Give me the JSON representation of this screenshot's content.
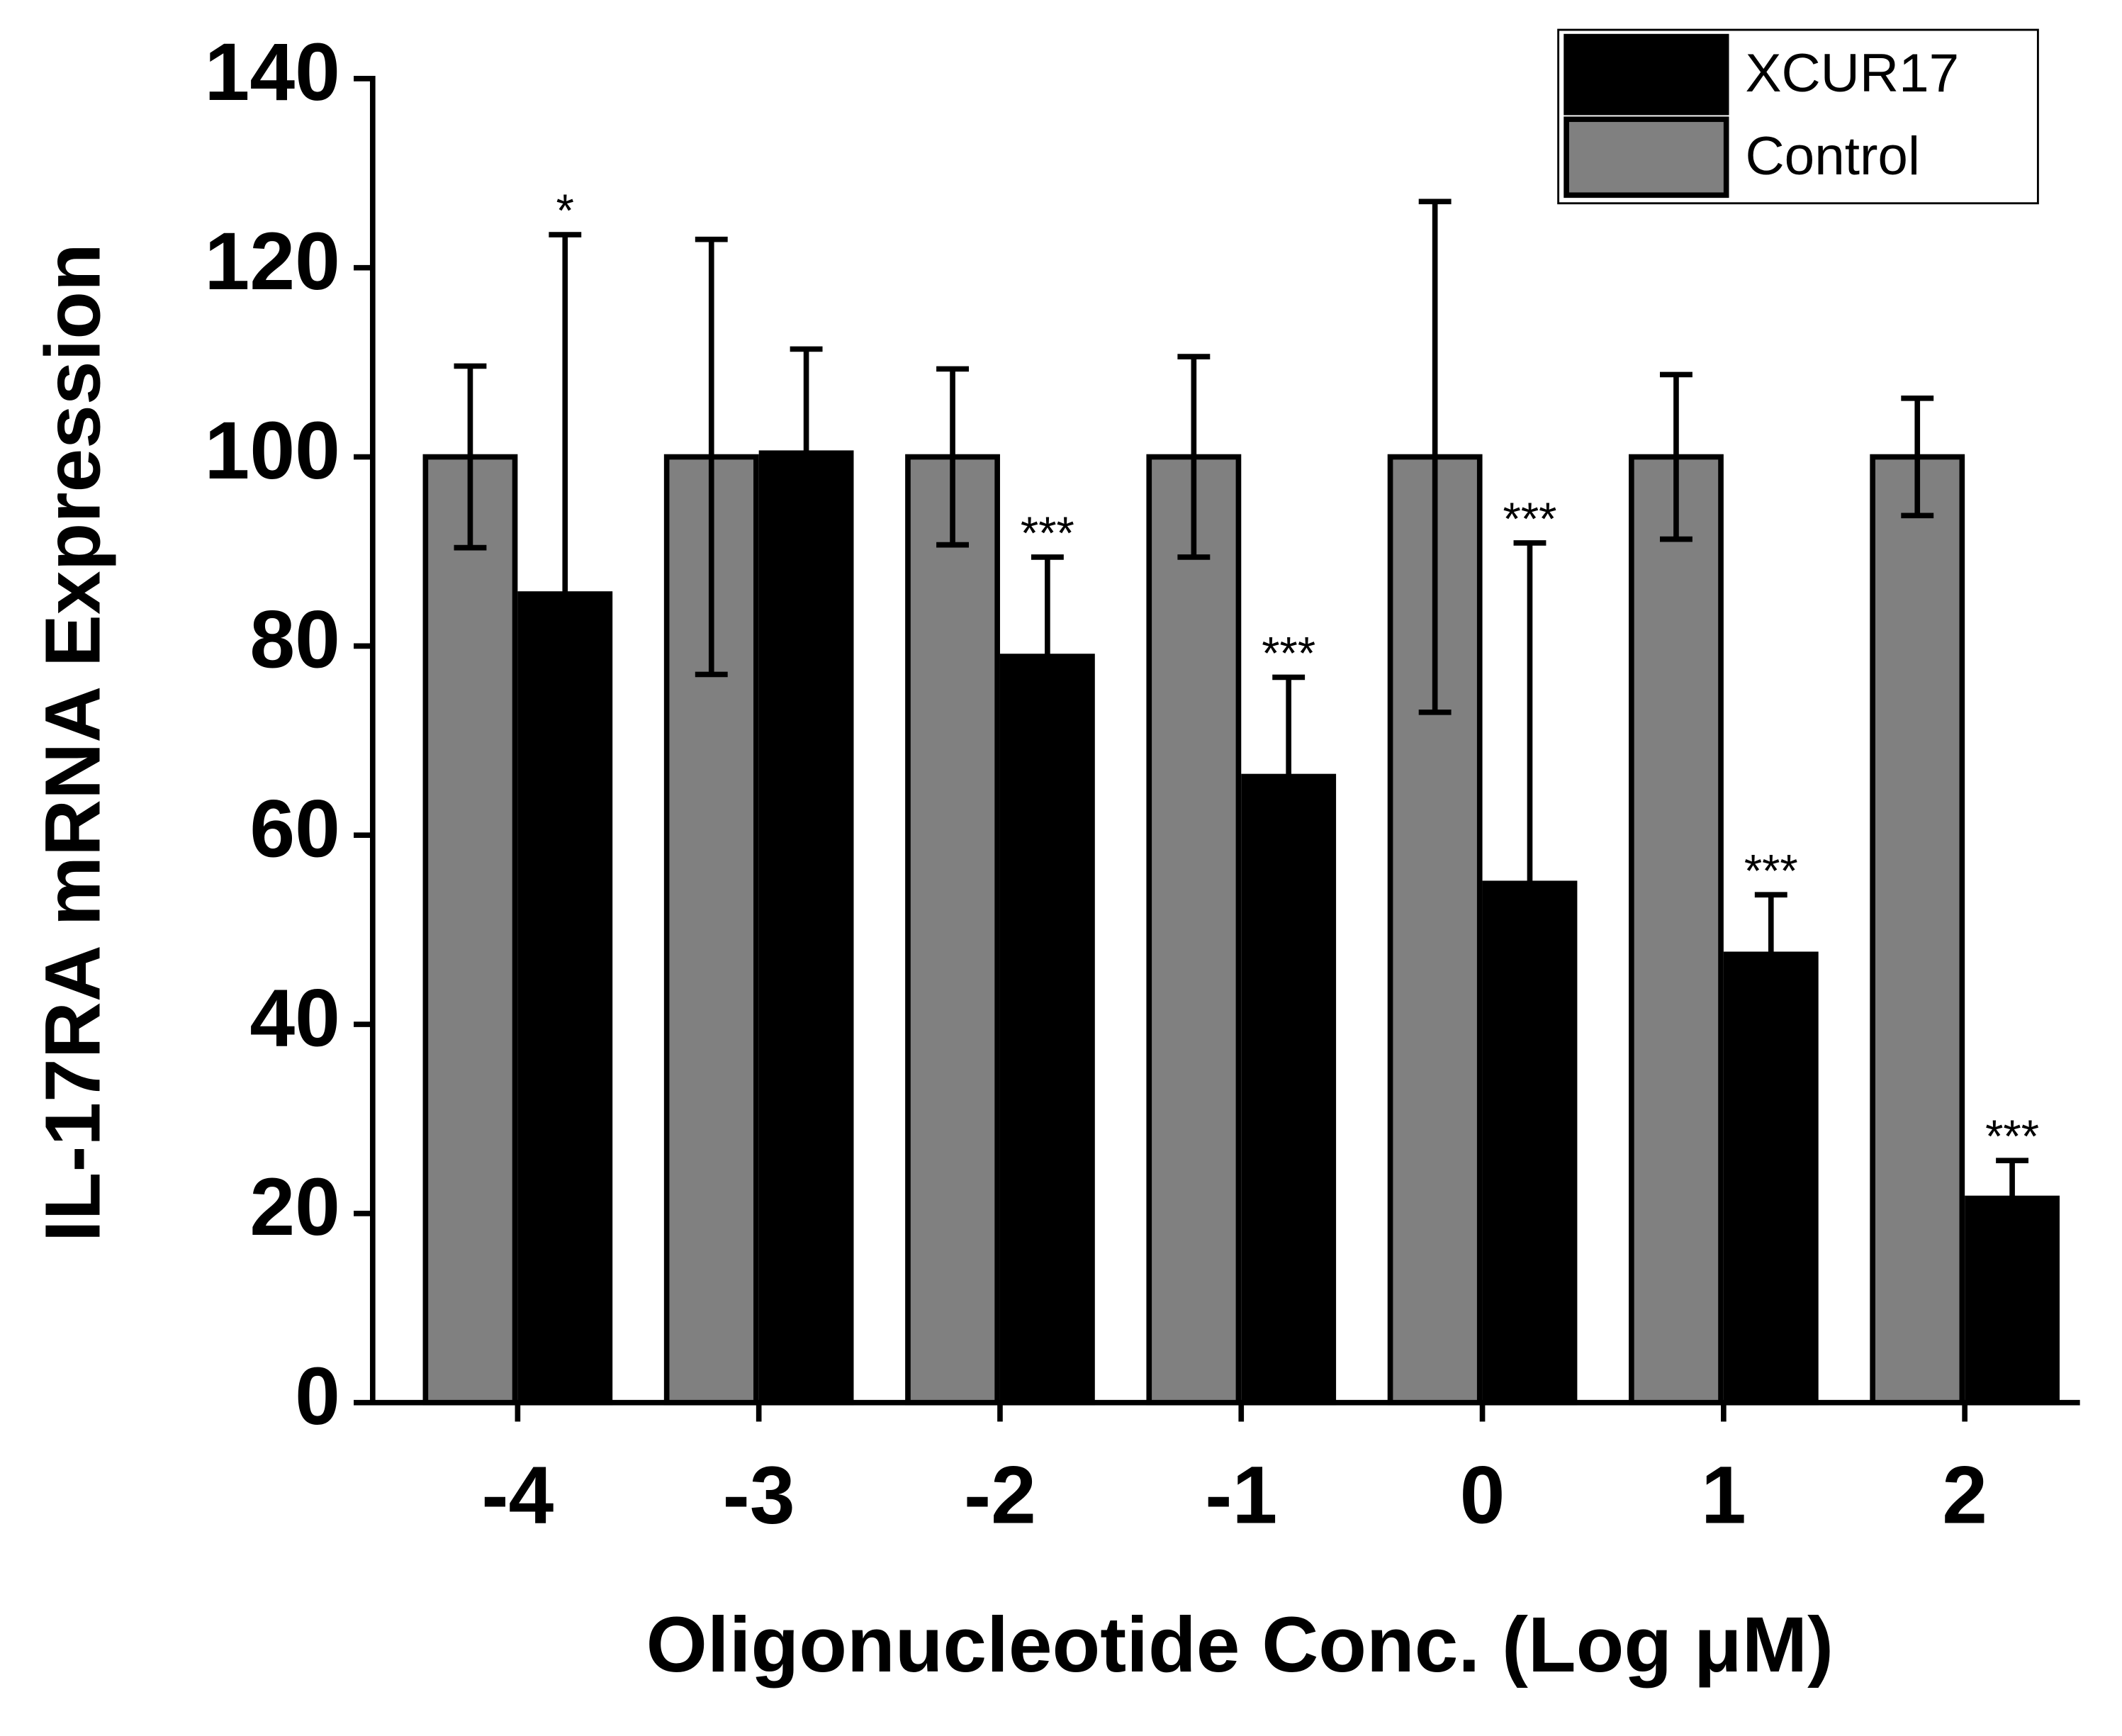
{
  "chart_data": {
    "type": "bar",
    "x_label": "Oligonucleotide Conc. (Log μM)",
    "y_label": "IL-17RA mRNA Expression",
    "categories": [
      "-4",
      "-3",
      "-2",
      "-1",
      "0",
      "1",
      "2"
    ],
    "series": [
      {
        "name": "XCUR17",
        "color": "#000000",
        "values": [
          85.5,
          100.4,
          78.9,
          66.2,
          54.9,
          47.4,
          21.6
        ],
        "errors": [
          38,
          11,
          10.5,
          10.5,
          36,
          6.3,
          4
        ],
        "annotations": [
          "*",
          null,
          "***",
          "***",
          "***",
          "***",
          "***"
        ]
      },
      {
        "name": "Control",
        "color": "#808080",
        "values": [
          100,
          100,
          100,
          100,
          100,
          100,
          100
        ],
        "errors": [
          9.6,
          23,
          9.3,
          10.6,
          27,
          8.7,
          6.2
        ]
      }
    ],
    "ylim": [
      0,
      140
    ],
    "yticks": [
      0,
      20,
      40,
      60,
      80,
      100,
      120,
      140
    ],
    "grid": false,
    "legend": "top-right"
  }
}
